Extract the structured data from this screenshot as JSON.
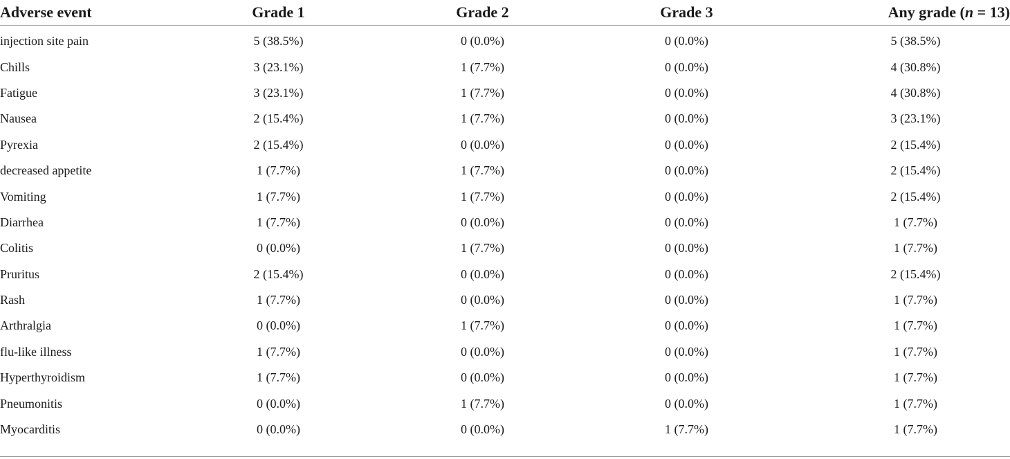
{
  "table": {
    "headers": {
      "event": "Adverse event",
      "grade1": "Grade 1",
      "grade2": "Grade 2",
      "grade3": "Grade 3",
      "any_prefix": "Any grade (",
      "any_n": "n",
      "any_suffix": " = 13)"
    },
    "rows": [
      {
        "event": "injection site pain",
        "g1": "5 (38.5%)",
        "g2": "0 (0.0%)",
        "g3": "0 (0.0%)",
        "any": "5 (38.5%)"
      },
      {
        "event": "Chills",
        "g1": "3 (23.1%)",
        "g2": "1 (7.7%)",
        "g3": "0 (0.0%)",
        "any": "4 (30.8%)"
      },
      {
        "event": "Fatigue",
        "g1": "3 (23.1%)",
        "g2": "1 (7.7%)",
        "g3": "0 (0.0%)",
        "any": "4 (30.8%)"
      },
      {
        "event": "Nausea",
        "g1": "2 (15.4%)",
        "g2": "1 (7.7%)",
        "g3": "0 (0.0%)",
        "any": "3 (23.1%)"
      },
      {
        "event": "Pyrexia",
        "g1": "2 (15.4%)",
        "g2": "0 (0.0%)",
        "g3": "0 (0.0%)",
        "any": "2 (15.4%)"
      },
      {
        "event": "decreased appetite",
        "g1": "1 (7.7%)",
        "g2": "1 (7.7%)",
        "g3": "0 (0.0%)",
        "any": "2 (15.4%)"
      },
      {
        "event": "Vomiting",
        "g1": "1 (7.7%)",
        "g2": "1 (7.7%)",
        "g3": "0 (0.0%)",
        "any": "2 (15.4%)"
      },
      {
        "event": "Diarrhea",
        "g1": "1 (7.7%)",
        "g2": "0 (0.0%)",
        "g3": "0 (0.0%)",
        "any": "1 (7.7%)"
      },
      {
        "event": "Colitis",
        "g1": "0 (0.0%)",
        "g2": "1 (7.7%)",
        "g3": "0 (0.0%)",
        "any": "1 (7.7%)"
      },
      {
        "event": "Pruritus",
        "g1": "2 (15.4%)",
        "g2": "0 (0.0%)",
        "g3": "0 (0.0%)",
        "any": "2 (15.4%)"
      },
      {
        "event": "Rash",
        "g1": "1 (7.7%)",
        "g2": "0 (0.0%)",
        "g3": "0 (0.0%)",
        "any": "1 (7.7%)"
      },
      {
        "event": "Arthralgia",
        "g1": "0 (0.0%)",
        "g2": "1 (7.7%)",
        "g3": "0 (0.0%)",
        "any": "1 (7.7%)"
      },
      {
        "event": "flu-like illness",
        "g1": "1 (7.7%)",
        "g2": "0 (0.0%)",
        "g3": "0 (0.0%)",
        "any": "1 (7.7%)"
      },
      {
        "event": "Hyperthyroidism",
        "g1": "1 (7.7%)",
        "g2": "0 (0.0%)",
        "g3": "0 (0.0%)",
        "any": "1 (7.7%)"
      },
      {
        "event": "Pneumonitis",
        "g1": "0 (0.0%)",
        "g2": "1 (7.7%)",
        "g3": "0 (0.0%)",
        "any": "1 (7.7%)"
      },
      {
        "event": "Myocarditis",
        "g1": "0 (0.0%)",
        "g2": "0 (0.0%)",
        "g3": "1 (7.7%)",
        "any": "1 (7.7%)"
      }
    ]
  }
}
